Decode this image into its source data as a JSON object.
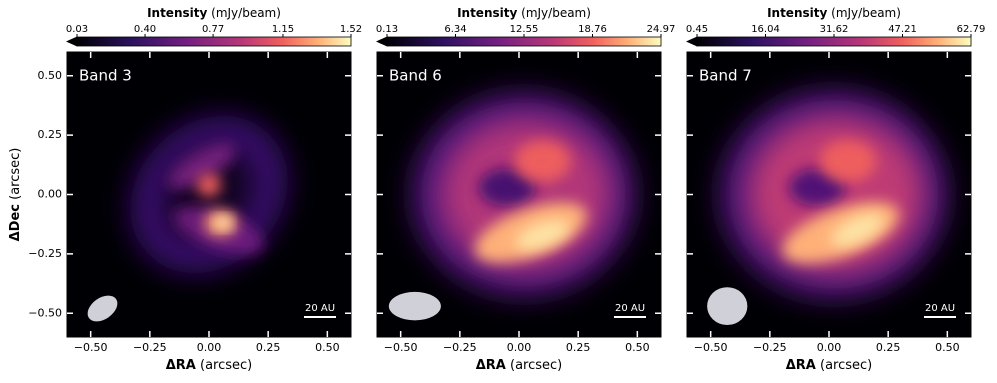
{
  "chart_data": [
    {
      "type": "image",
      "title": "Band 3",
      "colorbar_title": "Intensity",
      "colorbar_unit": "(mJy/beam)",
      "clim": [
        0.03,
        1.52
      ],
      "cticks": [
        0.03,
        {
          "value": 0.4,
          "label": "0.40"
        },
        0.77,
        1.15,
        1.52
      ],
      "xlabel_symbol": "ΔRA",
      "xlabel_unit": "(arcsec)",
      "ylabel_symbol": "ΔDec",
      "ylabel_unit": "(arcsec)",
      "xlim": [
        -0.6,
        0.6
      ],
      "ylim": [
        -0.6,
        0.6
      ],
      "xticks": [
        {
          "value": -0.5,
          "label": "−0.50"
        },
        {
          "value": -0.25,
          "label": "−0.25"
        },
        {
          "value": 0,
          "label": "0.00"
        },
        {
          "value": 0.25,
          "label": "0.25"
        },
        {
          "value": 0.5,
          "label": "0.50"
        }
      ],
      "yticks": [
        {
          "value": -0.5,
          "label": "−0.50"
        },
        {
          "value": -0.25,
          "label": "−0.25"
        },
        {
          "value": 0,
          "label": "0.00"
        },
        {
          "value": 0.25,
          "label": "0.25"
        },
        {
          "value": 0.5,
          "label": "0.50"
        }
      ],
      "scalebar_label": "20 AU"
    },
    {
      "type": "image",
      "title": "Band 6",
      "colorbar_title": "Intensity",
      "colorbar_unit": "(mJy/beam)",
      "clim": [
        0.13,
        24.97
      ],
      "cticks": [
        0.13,
        6.34,
        12.55,
        18.76,
        24.97
      ],
      "xlabel_symbol": "ΔRA",
      "xlabel_unit": "(arcsec)",
      "xlim": [
        -0.6,
        0.6
      ],
      "ylim": [
        -0.6,
        0.6
      ],
      "xticks": [
        {
          "value": -0.5,
          "label": "−0.50"
        },
        {
          "value": -0.25,
          "label": "−0.25"
        },
        {
          "value": 0,
          "label": "0.00"
        },
        {
          "value": 0.25,
          "label": "0.25"
        },
        {
          "value": 0.5,
          "label": "0.50"
        }
      ],
      "yticks": [
        -0.5,
        -0.25,
        0,
        0.25,
        0.5
      ],
      "ytick_labels": false,
      "scalebar_label": "20 AU"
    },
    {
      "type": "image",
      "title": "Band 7",
      "colorbar_title": "Intensity",
      "colorbar_unit": "(mJy/beam)",
      "clim": [
        0.45,
        62.79
      ],
      "cticks": [
        0.45,
        16.04,
        31.62,
        47.21,
        62.79
      ],
      "xlabel_symbol": "ΔRA",
      "xlabel_unit": "(arcsec)",
      "xlim": [
        -0.6,
        0.6
      ],
      "ylim": [
        -0.6,
        0.6
      ],
      "xticks": [
        {
          "value": -0.5,
          "label": "−0.50"
        },
        {
          "value": -0.25,
          "label": "−0.25"
        },
        {
          "value": 0,
          "label": "0.00"
        },
        {
          "value": 0.25,
          "label": "0.25"
        },
        {
          "value": 0.5,
          "label": "0.50"
        }
      ],
      "yticks": [
        -0.5,
        -0.25,
        0,
        0.25,
        0.5
      ],
      "ytick_labels": false,
      "scalebar_label": "20 AU"
    }
  ]
}
